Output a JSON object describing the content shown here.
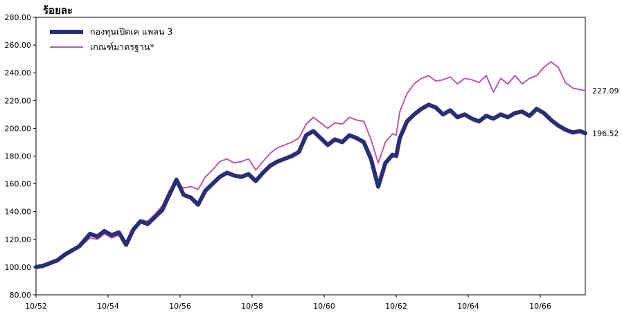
{
  "chart_data": {
    "type": "line",
    "ylabel": "ร้อยละ",
    "ylim": [
      80,
      280
    ],
    "yticks": [
      "80.00",
      "100.00",
      "120.00",
      "140.00",
      "160.00",
      "180.00",
      "200.00",
      "220.00",
      "240.00",
      "260.00",
      "280.00"
    ],
    "xlim": [
      0,
      15.25
    ],
    "xticks": [
      "10/52",
      "10/54",
      "10/56",
      "10/58",
      "10/60",
      "10/62",
      "10/64",
      "10/66"
    ],
    "legend_position": "top-left",
    "grid": false,
    "series": [
      {
        "name": "กองทุนเปิดเค แพลน 3",
        "color": "#2b2e72",
        "end_label": "196.52",
        "x": [
          0,
          0.2,
          0.4,
          0.6,
          0.8,
          1.0,
          1.2,
          1.5,
          1.7,
          1.9,
          2.1,
          2.3,
          2.5,
          2.7,
          2.9,
          3.1,
          3.3,
          3.5,
          3.7,
          3.9,
          4.1,
          4.3,
          4.5,
          4.7,
          4.9,
          5.1,
          5.3,
          5.5,
          5.7,
          5.9,
          6.1,
          6.3,
          6.5,
          6.7,
          6.9,
          7.1,
          7.3,
          7.5,
          7.7,
          7.9,
          8.1,
          8.3,
          8.5,
          8.7,
          8.9,
          9.1,
          9.3,
          9.5,
          9.7,
          9.9,
          10.0,
          10.1,
          10.3,
          10.5,
          10.7,
          10.9,
          11.1,
          11.3,
          11.5,
          11.7,
          11.9,
          12.1,
          12.3,
          12.5,
          12.7,
          12.9,
          13.1,
          13.3,
          13.5,
          13.7,
          13.9,
          14.1,
          14.3,
          14.5,
          14.7,
          14.9,
          15.1,
          15.25
        ],
        "y": [
          100,
          101,
          103,
          105,
          109,
          112,
          115,
          124,
          122,
          126,
          123,
          125,
          116,
          127,
          133,
          131,
          136,
          141,
          152,
          163,
          152,
          150,
          145,
          155,
          160,
          165,
          168,
          166,
          165,
          167,
          162,
          168,
          173,
          176,
          178,
          180,
          183,
          195,
          198,
          193,
          188,
          192,
          190,
          195,
          193,
          190,
          178,
          158,
          175,
          181,
          180,
          193,
          205,
          210,
          214,
          217,
          215,
          210,
          213,
          208,
          210,
          207,
          205,
          209,
          207,
          210,
          208,
          211,
          212,
          209,
          214,
          211,
          206,
          202,
          199,
          197,
          198,
          196.52
        ]
      },
      {
        "name": "เกณฑ์มาตรฐาน*",
        "color": "#bd57a9",
        "end_label": "227.09",
        "x": [
          0,
          0.2,
          0.4,
          0.6,
          0.8,
          1.0,
          1.2,
          1.5,
          1.7,
          1.9,
          2.1,
          2.3,
          2.5,
          2.7,
          2.9,
          3.1,
          3.3,
          3.5,
          3.7,
          3.9,
          4.1,
          4.3,
          4.5,
          4.7,
          4.9,
          5.1,
          5.3,
          5.5,
          5.7,
          5.9,
          6.1,
          6.3,
          6.5,
          6.7,
          6.9,
          7.1,
          7.3,
          7.5,
          7.7,
          7.9,
          8.1,
          8.3,
          8.5,
          8.7,
          8.9,
          9.1,
          9.3,
          9.5,
          9.7,
          9.9,
          10.0,
          10.1,
          10.3,
          10.5,
          10.7,
          10.9,
          11.1,
          11.3,
          11.5,
          11.7,
          11.9,
          12.1,
          12.3,
          12.5,
          12.7,
          12.9,
          13.1,
          13.3,
          13.5,
          13.7,
          13.9,
          14.1,
          14.3,
          14.5,
          14.7,
          14.9,
          15.1,
          15.25
        ],
        "y": [
          99,
          100,
          102,
          104,
          108,
          111,
          114,
          121,
          120,
          124,
          121,
          123,
          118,
          128,
          134,
          133,
          138,
          144,
          155,
          160,
          157,
          158,
          156,
          165,
          170,
          176,
          178,
          175,
          176,
          178,
          170,
          176,
          182,
          186,
          188,
          190,
          193,
          203,
          208,
          204,
          200,
          204,
          203,
          208,
          206,
          205,
          192,
          175,
          190,
          196,
          195,
          212,
          225,
          232,
          236,
          238,
          234,
          235,
          237,
          232,
          236,
          235,
          233,
          238,
          226,
          236,
          232,
          238,
          232,
          236,
          238,
          244,
          248,
          244,
          233,
          229,
          228,
          227.09
        ]
      }
    ]
  }
}
